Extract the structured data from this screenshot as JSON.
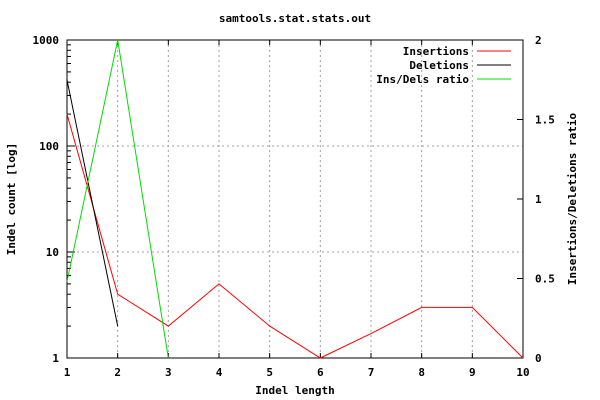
{
  "chart_data": {
    "type": "line",
    "title": "samtools.stat.stats.out",
    "xlabel": "Indel length",
    "ylabel": "Indel count [log]",
    "y2label": "Insertions/Deletions ratio",
    "xlim": [
      1,
      10
    ],
    "ylim": [
      1,
      1000
    ],
    "y2lim": [
      0,
      2
    ],
    "yscale": "log",
    "grid": true,
    "legend_position": "top-right",
    "x_ticks": [
      "1",
      "2",
      "3",
      "4",
      "5",
      "6",
      "7",
      "8",
      "9",
      "10"
    ],
    "y_ticks": [
      "1",
      "10",
      "100",
      "1000"
    ],
    "y2_ticks": [
      "0",
      "0.5",
      "1",
      "1.5",
      "2"
    ],
    "series": [
      {
        "name": "Insertions",
        "axis": "left",
        "color": "#ff0000",
        "x": [
          1,
          2,
          3,
          4,
          5,
          6,
          7,
          8,
          9,
          10
        ],
        "y": [
          200,
          4,
          2,
          5,
          2,
          1,
          1.7,
          3,
          3,
          1
        ]
      },
      {
        "name": "Deletions",
        "axis": "left",
        "color": "#000000",
        "x": [
          1,
          2
        ],
        "y": [
          420,
          2
        ]
      },
      {
        "name": "Ins/Dels ratio",
        "axis": "right",
        "color": "#00dd00",
        "x": [
          1,
          2,
          3
        ],
        "y": [
          0.48,
          2,
          0
        ]
      }
    ]
  }
}
